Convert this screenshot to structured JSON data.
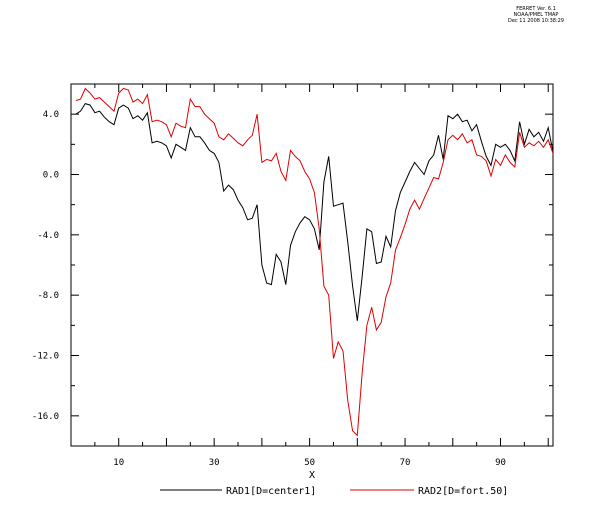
{
  "header": {
    "line1": "FERRET Ver. 6.1",
    "line2": "NOAA/PMEL TMAP",
    "line3": "Dec 11 2008 10:38:29"
  },
  "chart_data": {
    "type": "line",
    "xlabel": "X",
    "ylabel": "",
    "xlim": [
      0,
      101
    ],
    "ylim": [
      -18,
      6
    ],
    "xticks": [
      10,
      30,
      50,
      70,
      90
    ],
    "yticks": [
      4,
      0,
      -4,
      -8,
      -12,
      -16
    ],
    "ytick_labels": [
      "4.0",
      "0.0",
      "-4.0",
      "-8.0",
      "-12.0",
      "-16.0"
    ],
    "grid": false,
    "legend_position": "bottom",
    "series": [
      {
        "name": "RAD1[D=center1]",
        "color": "#000000",
        "x": [
          1,
          2,
          3,
          4,
          5,
          6,
          7,
          8,
          9,
          10,
          11,
          12,
          13,
          14,
          15,
          16,
          17,
          18,
          19,
          20,
          21,
          22,
          23,
          24,
          25,
          26,
          27,
          28,
          29,
          30,
          31,
          32,
          33,
          34,
          35,
          36,
          37,
          38,
          39,
          40,
          41,
          42,
          43,
          44,
          45,
          46,
          47,
          48,
          49,
          50,
          51,
          52,
          53,
          54,
          55,
          56,
          57,
          58,
          59,
          60,
          61,
          62,
          63,
          64,
          65,
          66,
          67,
          68,
          69,
          70,
          71,
          72,
          73,
          74,
          75,
          76,
          77,
          78,
          79,
          80,
          81,
          82,
          83,
          84,
          85,
          86,
          87,
          88,
          89,
          90,
          91,
          92,
          93,
          94,
          95,
          96,
          97,
          98,
          99,
          100,
          101
        ],
        "values": [
          4.0,
          4.2,
          4.7,
          4.6,
          4.1,
          4.2,
          3.8,
          3.5,
          3.3,
          4.4,
          4.6,
          4.4,
          3.7,
          3.9,
          3.6,
          4.1,
          2.1,
          2.2,
          2.1,
          1.9,
          1.1,
          2.0,
          1.8,
          1.6,
          3.1,
          2.5,
          2.5,
          2.1,
          1.6,
          1.4,
          0.8,
          -1.1,
          -0.7,
          -1.0,
          -1.7,
          -2.2,
          -3.0,
          -2.9,
          -2.0,
          -6.0,
          -7.2,
          -7.3,
          -5.3,
          -5.8,
          -7.3,
          -4.7,
          -3.8,
          -3.2,
          -2.8,
          -3.0,
          -3.6,
          -5.0,
          -0.5,
          1.2,
          -2.1,
          -2.0,
          -1.9,
          -4.5,
          -7.4,
          -9.7,
          -6.8,
          -3.6,
          -3.8,
          -5.9,
          -5.8,
          -4.1,
          -4.8,
          -2.4,
          -1.2,
          -0.5,
          0.2,
          0.8,
          0.4,
          0.0,
          0.9,
          1.3,
          2.6,
          1.0,
          3.9,
          3.7,
          4.0,
          3.5,
          3.6,
          2.9,
          3.3,
          2.2,
          1.2,
          0.6,
          2.0,
          1.8,
          2.0,
          1.6,
          0.9,
          3.5,
          2.0,
          3.0,
          2.5,
          2.8,
          2.2,
          3.1,
          1.5
        ]
      },
      {
        "name": "RAD2[D=fort.50]",
        "color": "#e00000",
        "x": [
          1,
          2,
          3,
          4,
          5,
          6,
          7,
          8,
          9,
          10,
          11,
          12,
          13,
          14,
          15,
          16,
          17,
          18,
          19,
          20,
          21,
          22,
          23,
          24,
          25,
          26,
          27,
          28,
          29,
          30,
          31,
          32,
          33,
          34,
          35,
          36,
          37,
          38,
          39,
          40,
          41,
          42,
          43,
          44,
          45,
          46,
          47,
          48,
          49,
          50,
          51,
          52,
          53,
          54,
          55,
          56,
          57,
          58,
          59,
          60,
          61,
          62,
          63,
          64,
          65,
          66,
          67,
          68,
          69,
          70,
          71,
          72,
          73,
          74,
          75,
          76,
          77,
          78,
          79,
          80,
          81,
          82,
          83,
          84,
          85,
          86,
          87,
          88,
          89,
          90,
          91,
          92,
          93,
          94,
          95,
          96,
          97,
          98,
          99,
          100,
          101
        ],
        "values": [
          4.9,
          5.0,
          5.7,
          5.4,
          5.0,
          5.1,
          4.8,
          4.5,
          4.2,
          5.4,
          5.7,
          5.6,
          4.8,
          5.0,
          4.7,
          5.3,
          3.5,
          3.6,
          3.5,
          3.3,
          2.5,
          3.4,
          3.2,
          3.1,
          5.0,
          4.5,
          4.5,
          4.0,
          3.7,
          3.4,
          2.5,
          2.3,
          2.7,
          2.4,
          2.1,
          1.9,
          2.3,
          2.6,
          4.0,
          0.8,
          1.0,
          0.9,
          1.4,
          0.2,
          -0.4,
          1.6,
          1.2,
          0.9,
          0.2,
          -0.3,
          -1.2,
          -3.6,
          -7.4,
          -8.0,
          -12.2,
          -11.1,
          -11.7,
          -15.0,
          -17.0,
          -17.3,
          -13.2,
          -10.0,
          -8.8,
          -10.3,
          -9.8,
          -8.1,
          -7.2,
          -5.0,
          -4.2,
          -3.3,
          -2.3,
          -1.7,
          -2.3,
          -1.6,
          -0.9,
          -0.2,
          -0.3,
          0.8,
          2.3,
          2.6,
          2.3,
          2.7,
          2.1,
          2.3,
          1.3,
          1.2,
          0.9,
          -0.1,
          1.0,
          0.6,
          1.3,
          0.8,
          0.5,
          2.8,
          1.8,
          2.1,
          1.9,
          2.2,
          1.8,
          2.3,
          1.4
        ]
      }
    ]
  }
}
